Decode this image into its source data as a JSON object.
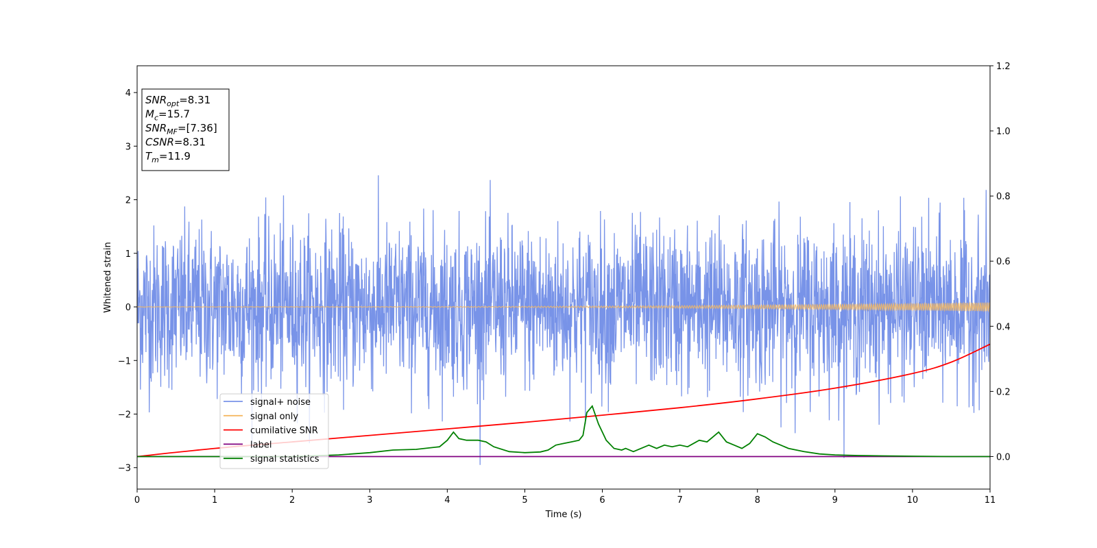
{
  "chart_data": {
    "type": "line",
    "title": "",
    "xlabel": "Time (s)",
    "ylabel": "Whitened strain",
    "xlim": [
      0,
      11
    ],
    "ylim": [
      -3.4,
      4.5
    ],
    "y2lim": [
      -0.1,
      1.2
    ],
    "xticks": [
      "0",
      "1",
      "2",
      "3",
      "4",
      "5",
      "6",
      "7",
      "8",
      "9",
      "10",
      "11"
    ],
    "yticks": [
      "−3",
      "−2",
      "−1",
      "0",
      "1",
      "2",
      "3",
      "4"
    ],
    "y2ticks": [
      "0.0",
      "0.2",
      "0.4",
      "0.6",
      "0.8",
      "1.0",
      "1.2"
    ],
    "grid": false,
    "legend_placement": "lower-left",
    "annotation": {
      "lines": [
        {
          "sym": "SNR",
          "sub": "opt",
          "rest": "=8.31"
        },
        {
          "sym": "M",
          "sub": "c",
          "rest": "=15.7"
        },
        {
          "sym": "SNR",
          "sub": "MF",
          "rest": "=[7.36]"
        },
        {
          "sym": "CSNR",
          "sub": "",
          "rest": "=8.31"
        },
        {
          "sym": "T",
          "sub": "m",
          "rest": "=11.9"
        }
      ]
    },
    "series": [
      {
        "name": "signal+ noise",
        "axis": "left",
        "color": "#7893e8",
        "kind": "noise",
        "amplitude_std": 0.75,
        "range": [
          -2.95,
          2.75
        ]
      },
      {
        "name": "signal only",
        "axis": "left",
        "color": "#f5b862",
        "kind": "chirp",
        "amplitude_end": 0.08
      },
      {
        "name": "cumilative SNR",
        "axis": "right",
        "color": "#ff0000",
        "x": [
          0,
          1,
          2,
          3,
          4,
          5,
          6,
          7,
          8,
          9,
          10,
          10.5,
          11
        ],
        "y": [
          0.0,
          0.025,
          0.045,
          0.065,
          0.085,
          0.105,
          0.127,
          0.15,
          0.177,
          0.21,
          0.255,
          0.29,
          0.345
        ]
      },
      {
        "name": "label",
        "axis": "right",
        "color": "#800080",
        "x": [
          0,
          11
        ],
        "y": [
          0.0,
          0.0
        ]
      },
      {
        "name": "signal statistics",
        "axis": "right",
        "color": "#008000",
        "x": [
          0,
          1,
          2,
          2.6,
          3,
          3.3,
          3.6,
          3.9,
          4.0,
          4.08,
          4.15,
          4.25,
          4.4,
          4.5,
          4.6,
          4.8,
          5.0,
          5.2,
          5.3,
          5.4,
          5.5,
          5.6,
          5.7,
          5.75,
          5.8,
          5.87,
          5.95,
          6.05,
          6.15,
          6.25,
          6.3,
          6.4,
          6.5,
          6.6,
          6.7,
          6.8,
          6.9,
          7.0,
          7.1,
          7.25,
          7.35,
          7.5,
          7.6,
          7.7,
          7.8,
          7.9,
          8.0,
          8.1,
          8.2,
          8.3,
          8.4,
          8.6,
          8.8,
          9.0,
          9.3,
          9.6,
          10.0,
          10.5,
          11.0
        ],
        "y": [
          0.0,
          0.0,
          0.0,
          0.005,
          0.012,
          0.02,
          0.022,
          0.03,
          0.05,
          0.075,
          0.055,
          0.05,
          0.05,
          0.045,
          0.03,
          0.015,
          0.012,
          0.014,
          0.02,
          0.035,
          0.04,
          0.045,
          0.05,
          0.065,
          0.135,
          0.155,
          0.1,
          0.05,
          0.025,
          0.02,
          0.025,
          0.015,
          0.025,
          0.035,
          0.025,
          0.035,
          0.03,
          0.035,
          0.03,
          0.05,
          0.045,
          0.075,
          0.045,
          0.035,
          0.025,
          0.04,
          0.07,
          0.06,
          0.045,
          0.035,
          0.025,
          0.015,
          0.008,
          0.005,
          0.003,
          0.002,
          0.001,
          0.0,
          0.0
        ]
      }
    ]
  }
}
